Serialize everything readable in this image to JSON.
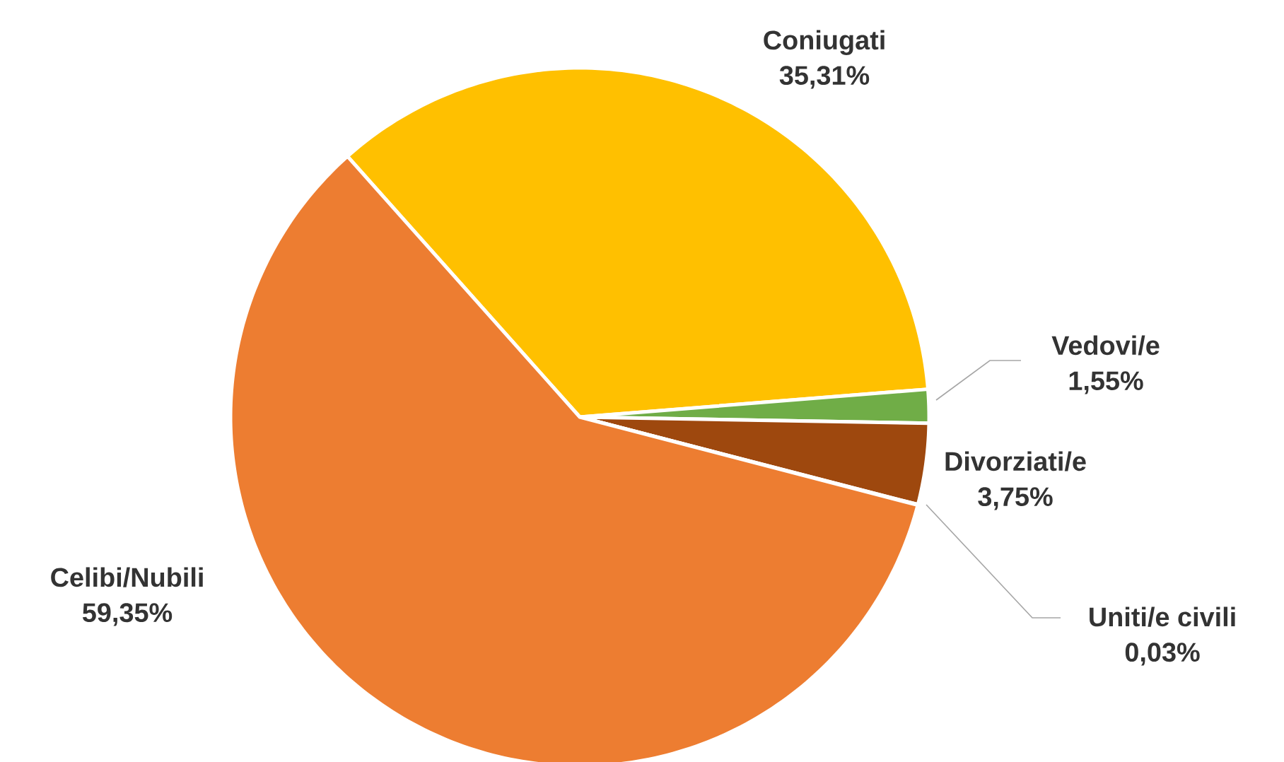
{
  "chart_data": {
    "type": "pie",
    "categories": [
      "Coniugati",
      "Vedovi/e",
      "Divorziati/e",
      "Uniti/e civili",
      "Celibi/Nubili"
    ],
    "values": [
      35.31,
      1.55,
      3.75,
      0.03,
      59.35
    ],
    "colors": [
      "#ffc000",
      "#70ad47",
      "#9e480e",
      "#636363",
      "#ed7d31"
    ],
    "value_labels": [
      "35,31%",
      "1,55%",
      "3,75%",
      "0,03%",
      "59,35%"
    ]
  }
}
